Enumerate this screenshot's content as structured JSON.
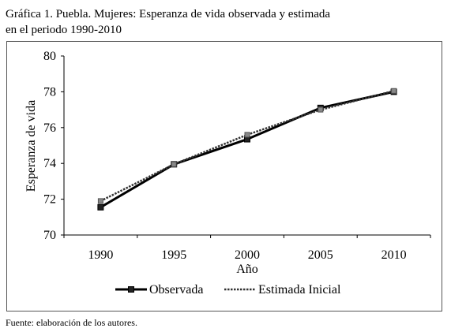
{
  "title_line1": "Gráfica 1. Puebla. Mujeres: Esperanza de vida observada y estimada",
  "title_line2": "en el periodo 1990-2010",
  "source": "Fuente: elaboración de los autores.",
  "chart_data": {
    "type": "line",
    "x": [
      1990,
      1995,
      2000,
      2005,
      2010
    ],
    "categories": [
      "1990",
      "1995",
      "2000",
      "2005",
      "2010"
    ],
    "xlabel": "Año",
    "ylabel": "Esperanza de vida",
    "ylim": [
      70,
      80
    ],
    "yticks": [
      70,
      72,
      74,
      76,
      78,
      80
    ],
    "grid": false,
    "legend_position": "bottom",
    "series": [
      {
        "name": "Observada",
        "values": [
          71.55,
          73.95,
          75.35,
          77.1,
          78.0
        ],
        "color": "#000000",
        "style": "solid"
      },
      {
        "name": "Estimada Inicial",
        "values": [
          71.9,
          73.95,
          75.6,
          77.0,
          78.05
        ],
        "color": "#333333",
        "style": "dotted"
      }
    ]
  }
}
